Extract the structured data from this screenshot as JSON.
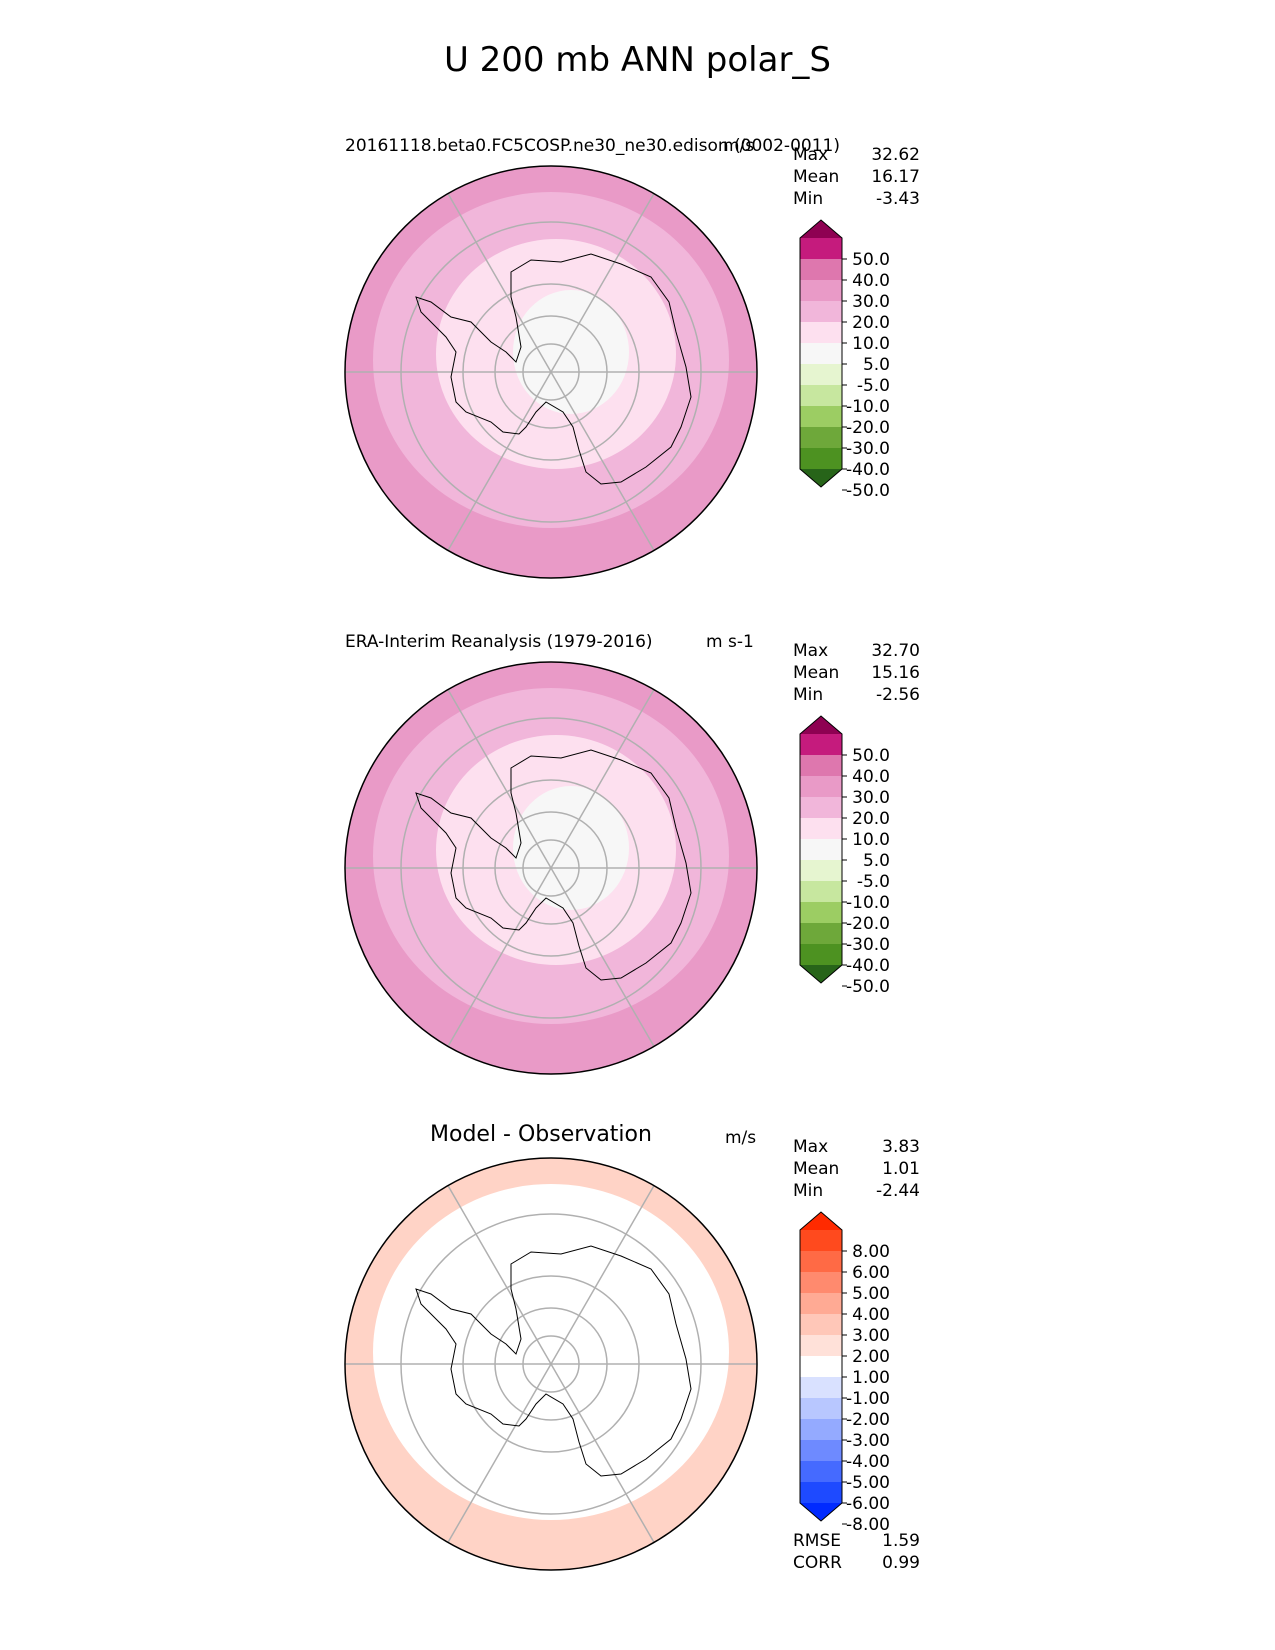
{
  "title": "U 200 mb ANN polar_S",
  "panels": [
    {
      "name": "test",
      "title": "20161118.beta0.FC5COSP.ne30_ne30.edison (0002-0011)",
      "unit": "m/s",
      "stats": [
        {
          "label": "Max",
          "value": "32.62"
        },
        {
          "label": "Mean",
          "value": "16.17"
        },
        {
          "label": "Min",
          "value": "-3.43"
        }
      ],
      "colorbar": {
        "labels": [
          "50.0",
          "40.0",
          "30.0",
          "20.0",
          "10.0",
          "5.0",
          "-5.0",
          "-10.0",
          "-20.0",
          "-30.0",
          "-40.0",
          "-50.0"
        ],
        "colors": [
          "#8e0152",
          "#c51b7d",
          "#de77ae",
          "#e99ac7",
          "#f1b6da",
          "#fde0ef",
          "#f7f7f7",
          "#e6f5d0",
          "#c7e79f",
          "#9ccd63",
          "#6ea83a",
          "#4d9221",
          "#276419"
        ]
      },
      "zones": {
        "outer": "#e99ac7",
        "ring": "#f1b6da",
        "inner": "#fde0ef",
        "core": "#f7f7f7",
        "edge": "#de77ae"
      }
    },
    {
      "name": "reference",
      "title": "ERA-Interim Reanalysis (1979-2016)",
      "unit": "m s-1",
      "stats": [
        {
          "label": "Max",
          "value": "32.70"
        },
        {
          "label": "Mean",
          "value": "15.16"
        },
        {
          "label": "Min",
          "value": "-2.56"
        }
      ],
      "colorbar": {
        "labels": [
          "50.0",
          "40.0",
          "30.0",
          "20.0",
          "10.0",
          "5.0",
          "-5.0",
          "-10.0",
          "-20.0",
          "-30.0",
          "-40.0",
          "-50.0"
        ],
        "colors": [
          "#8e0152",
          "#c51b7d",
          "#de77ae",
          "#e99ac7",
          "#f1b6da",
          "#fde0ef",
          "#f7f7f7",
          "#e6f5d0",
          "#c7e79f",
          "#9ccd63",
          "#6ea83a",
          "#4d9221",
          "#276419"
        ]
      },
      "zones": {
        "outer": "#e99ac7",
        "ring": "#f1b6da",
        "inner": "#fde0ef",
        "core": "#f7f7f7",
        "edge": "#de77ae"
      }
    },
    {
      "name": "difference",
      "title": "Model - Observation",
      "unit": "m/s",
      "stats": [
        {
          "label": "Max",
          "value": "3.83"
        },
        {
          "label": "Mean",
          "value": "1.01"
        },
        {
          "label": "Min",
          "value": "-2.44"
        }
      ],
      "colorbar": {
        "labels": [
          "8.00",
          "6.00",
          "5.00",
          "4.00",
          "3.00",
          "2.00",
          "1.00",
          "-1.00",
          "-2.00",
          "-3.00",
          "-4.00",
          "-5.00",
          "-6.00",
          "-8.00"
        ],
        "colors": [
          "#ff2a00",
          "#ff4a1e",
          "#ff6a45",
          "#ff8a6e",
          "#ffaa94",
          "#ffc7b8",
          "#ffe1d9",
          "#ffffff",
          "#d9e1ff",
          "#b8c7ff",
          "#94aaff",
          "#6e8aff",
          "#456aff",
          "#1e4aff",
          "#002aff"
        ]
      },
      "zones": {
        "outer": "#ffd3c6",
        "ring": "#ffffff",
        "inner": "#ffffff",
        "core": "#ffffff",
        "edge": "#ffb8a3"
      },
      "metrics": [
        {
          "label": "RMSE",
          "value": "1.59"
        },
        {
          "label": "CORR",
          "value": "0.99"
        }
      ]
    }
  ]
}
